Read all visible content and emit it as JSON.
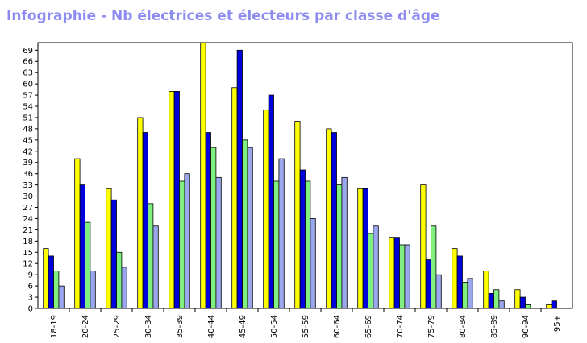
{
  "chart_data": {
    "type": "bar",
    "title": "Infographie - Nb électrices et électeurs par classe d'âge",
    "xlabel": "",
    "ylabel": "",
    "ylim": [
      0,
      71
    ],
    "yticks": [
      0,
      3,
      6,
      9,
      12,
      15,
      18,
      21,
      24,
      27,
      30,
      33,
      36,
      39,
      42,
      45,
      48,
      51,
      54,
      57,
      60,
      63,
      66,
      69
    ],
    "grid": false,
    "legend": "none",
    "categories": [
      "18-19",
      "20-24",
      "25-29",
      "30-34",
      "35-39",
      "40-44",
      "45-49",
      "50-54",
      "55-59",
      "60-64",
      "65-69",
      "70-74",
      "75-79",
      "80-84",
      "85-89",
      "90-94",
      "95+"
    ],
    "series": [
      {
        "color": "#ffff00",
        "values": [
          16,
          40,
          32,
          51,
          58,
          71,
          59,
          53,
          50,
          48,
          32,
          19,
          33,
          16,
          10,
          5,
          1
        ]
      },
      {
        "color": "#0000dd",
        "values": [
          14,
          33,
          29,
          47,
          58,
          47,
          69,
          57,
          37,
          47,
          32,
          19,
          13,
          14,
          4,
          3,
          2
        ]
      },
      {
        "color": "#80f080",
        "values": [
          10,
          23,
          15,
          28,
          34,
          43,
          45,
          34,
          34,
          33,
          20,
          17,
          22,
          7,
          5,
          1,
          0
        ]
      },
      {
        "color": "#9aa6ee",
        "values": [
          6,
          10,
          11,
          22,
          36,
          35,
          43,
          40,
          24,
          35,
          22,
          17,
          9,
          8,
          2,
          0,
          0
        ]
      }
    ]
  }
}
